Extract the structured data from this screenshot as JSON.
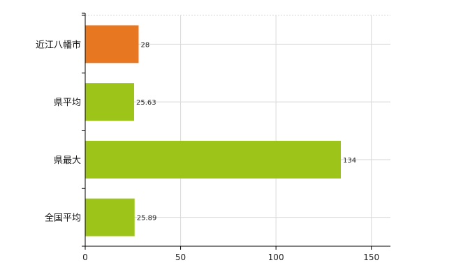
{
  "chart_data": {
    "type": "bar",
    "orientation": "horizontal",
    "title": "",
    "xlabel": "",
    "ylabel": "",
    "categories": [
      "近江八幡市",
      "県平均",
      "県最大",
      "全国平均"
    ],
    "values": [
      28,
      25.63,
      134,
      25.89
    ],
    "value_labels": [
      "28",
      "25.63",
      "134",
      "25.89"
    ],
    "xlim": [
      0,
      160
    ],
    "x_ticks": [
      0,
      50,
      100,
      150
    ],
    "x_tick_labels": [
      "0",
      "50",
      "100",
      "150"
    ],
    "grid": true,
    "legend": "none",
    "colors": {
      "highlight": "#e87722",
      "default": "#9dc419",
      "grid": "#d9d9d9",
      "axis": "#000000"
    },
    "bar_colors": [
      "#e87722",
      "#9dc419",
      "#9dc419",
      "#9dc419"
    ]
  }
}
